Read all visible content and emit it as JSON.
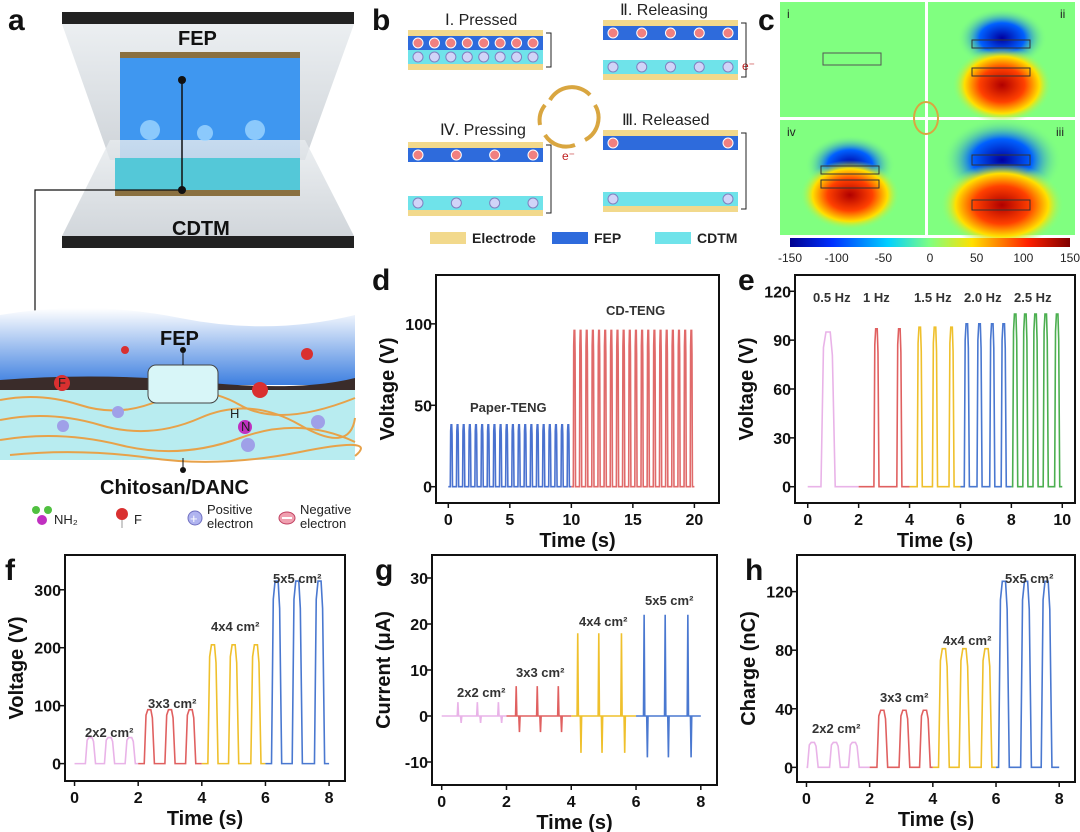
{
  "panels": {
    "a": "a",
    "b": "b",
    "c": "c",
    "d": "d",
    "e": "e",
    "f": "f",
    "g": "g",
    "h": "h"
  },
  "panel_a": {
    "top_label": "FEP",
    "bottom_label": "CDTM",
    "fep_label": "FEP",
    "substrate_label": "Chitosan/DANC",
    "legend": {
      "nh2": "NH₂",
      "f": "F",
      "positive": [
        "Positive",
        "electron"
      ],
      "negative": [
        "Negative",
        "electron"
      ]
    },
    "atom_f": "F",
    "atom_h": "H",
    "atom_n": "N"
  },
  "panel_b": {
    "states": [
      "Ⅰ. Pressed",
      "Ⅱ. Releasing",
      "Ⅲ. Released",
      "Ⅳ. Pressing"
    ],
    "electron": "e⁻",
    "legend": [
      "Electrode",
      "FEP",
      "CDTM"
    ],
    "colors": {
      "electrode": "#f2d98c",
      "fep": "#2e6bdc",
      "cdtm": "#6fe3ea"
    }
  },
  "panel_c": {
    "subpanels": [
      "i",
      "ii",
      "iii",
      "iv"
    ],
    "colorbar_ticks": [
      "-150",
      "-100",
      "-50",
      "0",
      "50",
      "100",
      "150"
    ]
  },
  "chart_data": [
    {
      "id": "d",
      "type": "line",
      "xlabel": "Time (s)",
      "ylabel": "Voltage (V)",
      "xlim": [
        -1,
        22
      ],
      "ylim": [
        -10,
        130
      ],
      "xticks": [
        0,
        5,
        10,
        15,
        20
      ],
      "yticks": [
        0,
        50,
        100
      ],
      "series": [
        {
          "name": "Paper-TENG",
          "color": "#4a72cf",
          "range": [
            0,
            10
          ],
          "peak_value": 38,
          "peaks": [
            0.25,
            0.75,
            1.25,
            1.75,
            2.25,
            2.75,
            3.25,
            3.75,
            4.25,
            4.75,
            5.25,
            5.75,
            6.25,
            6.75,
            7.25,
            7.75,
            8.25,
            8.75,
            9.25,
            9.75
          ]
        },
        {
          "name": "CD-TENG",
          "color": "#e06a6a",
          "range": [
            10,
            20
          ],
          "peak_value": 96,
          "peaks": [
            10.25,
            10.75,
            11.25,
            11.75,
            12.25,
            12.75,
            13.25,
            13.75,
            14.25,
            14.75,
            15.25,
            15.75,
            16.25,
            16.75,
            17.25,
            17.75,
            18.25,
            18.75,
            19.25,
            19.75
          ]
        }
      ]
    },
    {
      "id": "e",
      "type": "line",
      "xlabel": "Time (s)",
      "ylabel": "Voltage (V)",
      "xlim": [
        -0.5,
        10.5
      ],
      "ylim": [
        -10,
        130
      ],
      "xticks": [
        0,
        2,
        4,
        6,
        8,
        10
      ],
      "yticks": [
        0,
        30,
        60,
        90,
        120
      ],
      "series": [
        {
          "name": "0.5 Hz",
          "color": "#e9b3e8",
          "range": [
            0,
            2
          ],
          "peak_value": 95,
          "peaks": [
            0.8
          ]
        },
        {
          "name": "1 Hz",
          "color": "#e06060",
          "range": [
            2,
            4
          ],
          "peak_value": 97,
          "peaks": [
            2.7,
            3.6
          ]
        },
        {
          "name": "1.5 Hz",
          "color": "#efc02c",
          "range": [
            4,
            6
          ],
          "peak_value": 98,
          "peaks": [
            4.4,
            5.0,
            5.65
          ]
        },
        {
          "name": "2.0 Hz",
          "color": "#4a78d0",
          "range": [
            6,
            8
          ],
          "peak_value": 100,
          "peaks": [
            6.25,
            6.75,
            7.25,
            7.7
          ]
        },
        {
          "name": "2.5 Hz",
          "color": "#4caf50",
          "range": [
            8,
            10
          ],
          "peak_value": 106,
          "peaks": [
            8.15,
            8.55,
            8.95,
            9.35,
            9.8
          ]
        }
      ]
    },
    {
      "id": "f",
      "type": "line",
      "xlabel": "Time (s)",
      "ylabel": "Voltage (V)",
      "xlim": [
        -0.3,
        8.5
      ],
      "ylim": [
        -30,
        360
      ],
      "xticks": [
        0,
        2,
        4,
        6,
        8
      ],
      "yticks": [
        0,
        100,
        200,
        300
      ],
      "series": [
        {
          "name": "2x2 cm²",
          "color": "#e9b3e8",
          "range": [
            0,
            2
          ],
          "peak_value": 45,
          "peaks": [
            0.5,
            1.1,
            1.75
          ]
        },
        {
          "name": "3x3 cm²",
          "color": "#e06060",
          "range": [
            2,
            4
          ],
          "peak_value": 93,
          "peaks": [
            2.35,
            3.0,
            3.65
          ]
        },
        {
          "name": "4x4 cm²",
          "color": "#efc02c",
          "range": [
            4,
            6
          ],
          "peak_value": 205,
          "peaks": [
            4.35,
            5.0,
            5.7
          ]
        },
        {
          "name": "5x5 cm²",
          "color": "#4a78d0",
          "range": [
            6,
            8
          ],
          "peak_value": 315,
          "peaks": [
            6.35,
            7.0,
            7.7
          ]
        }
      ]
    },
    {
      "id": "g",
      "type": "line",
      "xlabel": "Time (s)",
      "ylabel": "Current (μA)",
      "xlim": [
        -0.3,
        8.5
      ],
      "ylim": [
        -15,
        35
      ],
      "xticks": [
        0,
        2,
        4,
        6,
        8
      ],
      "yticks": [
        -10,
        0,
        10,
        20,
        30
      ],
      "series": [
        {
          "name": "2x2 cm²",
          "color": "#e9b3e8",
          "range": [
            0,
            2
          ],
          "peak_value": 3,
          "negative_value": -1.5,
          "peaks": [
            0.5,
            1.1,
            1.75
          ]
        },
        {
          "name": "3x3 cm²",
          "color": "#e06060",
          "range": [
            2,
            4
          ],
          "peak_value": 6.5,
          "negative_value": -3.5,
          "peaks": [
            2.3,
            2.95,
            3.6
          ]
        },
        {
          "name": "4x4 cm²",
          "color": "#efc02c",
          "range": [
            4,
            6
          ],
          "peak_value": 18,
          "negative_value": -8,
          "peaks": [
            4.2,
            4.85,
            5.55
          ]
        },
        {
          "name": "5x5 cm²",
          "color": "#4a78d0",
          "range": [
            6,
            8
          ],
          "peak_value": 22,
          "negative_value": -9,
          "peaks": [
            6.25,
            6.9,
            7.6
          ]
        }
      ]
    },
    {
      "id": "h",
      "type": "line",
      "xlabel": "Time (s)",
      "ylabel": "Charge (nC)",
      "xlim": [
        -0.3,
        8.5
      ],
      "ylim": [
        -10,
        145
      ],
      "xticks": [
        0,
        2,
        4,
        6,
        8
      ],
      "yticks": [
        0,
        40,
        80,
        120
      ],
      "series": [
        {
          "name": "2x2 cm²",
          "color": "#e9b3e8",
          "range": [
            0,
            2
          ],
          "peak_value": 17,
          "peaks": [
            0.2,
            0.9,
            1.5
          ]
        },
        {
          "name": "3x3 cm²",
          "color": "#e06060",
          "range": [
            2,
            4
          ],
          "peak_value": 39,
          "peaks": [
            2.4,
            3.1,
            3.75
          ]
        },
        {
          "name": "4x4 cm²",
          "color": "#efc02c",
          "range": [
            4,
            6
          ],
          "peak_value": 81,
          "peaks": [
            4.35,
            5.0,
            5.7
          ]
        },
        {
          "name": "5x5 cm²",
          "color": "#4a78d0",
          "range": [
            6,
            8
          ],
          "peak_value": 127,
          "peaks": [
            6.25,
            6.95,
            7.6
          ]
        }
      ]
    }
  ]
}
